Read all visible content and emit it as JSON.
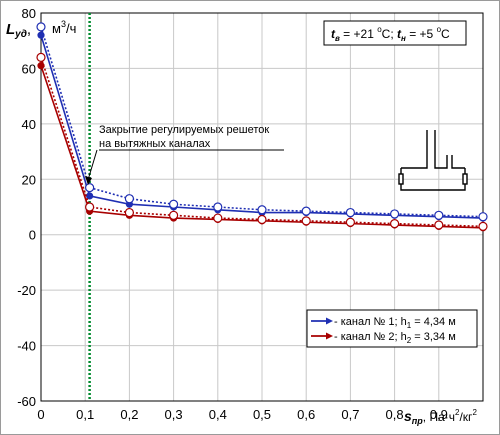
{
  "header": {
    "y_symbol": "L",
    "y_symbol_sub": "уд",
    "y_sep": ",",
    "y_unit_base": "м",
    "y_unit_sup": "3",
    "y_unit_rest": "/ч",
    "condition": {
      "tv_sym": "t",
      "tv_sub": "в",
      "tv_val": " = +21 ",
      "tv_deg": "o",
      "tv_c": "C; ",
      "tn_sym": "t",
      "tn_sub": "н",
      "tn_val": " = +5 ",
      "tn_deg": "o",
      "tn_c": "C"
    }
  },
  "annotation": {
    "line1": "Закрытие регулируемых решеток",
    "line2": "на вытяжных каналах",
    "marker_x": 0.11
  },
  "x_axis_label": {
    "sym": "s",
    "sub": "пр",
    "unit_a": ", Па·ч",
    "sup1": "2",
    "unit_b": "/кг",
    "sup2": "2"
  },
  "legend": {
    "entries": [
      {
        "prefix": " - канал № 1; h",
        "sub": "1",
        "suffix": " = 4,34 м",
        "color": "#1f2fb3"
      },
      {
        "prefix": " - канал № 2; h",
        "sub": "2",
        "suffix": " = 3,34 м",
        "color": "#a80000"
      }
    ]
  },
  "chart_data": {
    "type": "line",
    "xlim": [
      0,
      1.0
    ],
    "ylim": [
      -60,
      80
    ],
    "x_ticks": [
      "0",
      "0,1",
      "0,2",
      "0,3",
      "0,4",
      "0,5",
      "0,6",
      "0,7",
      "0,8",
      "0,9"
    ],
    "y_ticks": [
      "-60",
      "-40",
      "-20",
      "0",
      "20",
      "40",
      "60",
      "80"
    ],
    "grid": true,
    "series": [
      {
        "name": "канал № 1; h1 = 4,34 м",
        "style": "solid",
        "marker": "filled",
        "color": "#1f2fb3",
        "x": [
          0,
          0.11,
          0.2,
          0.3,
          0.4,
          0.5,
          0.6,
          0.7,
          0.8,
          0.9,
          1.0
        ],
        "y": [
          72,
          14,
          11,
          10,
          9,
          8,
          8,
          7.5,
          7,
          6.5,
          6
        ]
      },
      {
        "name": "канал № 1; h1 = 4,34 м",
        "style": "dotted",
        "marker": "open",
        "color": "#1f2fb3",
        "x": [
          0,
          0.11,
          0.2,
          0.3,
          0.4,
          0.5,
          0.6,
          0.7,
          0.8,
          0.9,
          1.0
        ],
        "y": [
          75,
          17,
          13,
          11,
          10,
          9,
          8.5,
          8,
          7.5,
          7,
          6.5
        ]
      },
      {
        "name": "канал № 2; h2 = 3,34 м",
        "style": "solid",
        "marker": "filled",
        "color": "#a80000",
        "x": [
          0,
          0.11,
          0.2,
          0.3,
          0.4,
          0.5,
          0.6,
          0.7,
          0.8,
          0.9,
          1.0
        ],
        "y": [
          61,
          8.5,
          7,
          6,
          5.5,
          5,
          4.5,
          4,
          3.5,
          3,
          2.5
        ]
      },
      {
        "name": "канал № 2; h2 = 3,34 м",
        "style": "dotted",
        "marker": "open",
        "color": "#a80000",
        "x": [
          0,
          0.11,
          0.2,
          0.3,
          0.4,
          0.5,
          0.6,
          0.7,
          0.8,
          0.9,
          1.0
        ],
        "y": [
          64,
          10,
          8,
          7,
          6,
          5.5,
          5,
          4.5,
          4,
          3.5,
          3
        ]
      }
    ]
  }
}
